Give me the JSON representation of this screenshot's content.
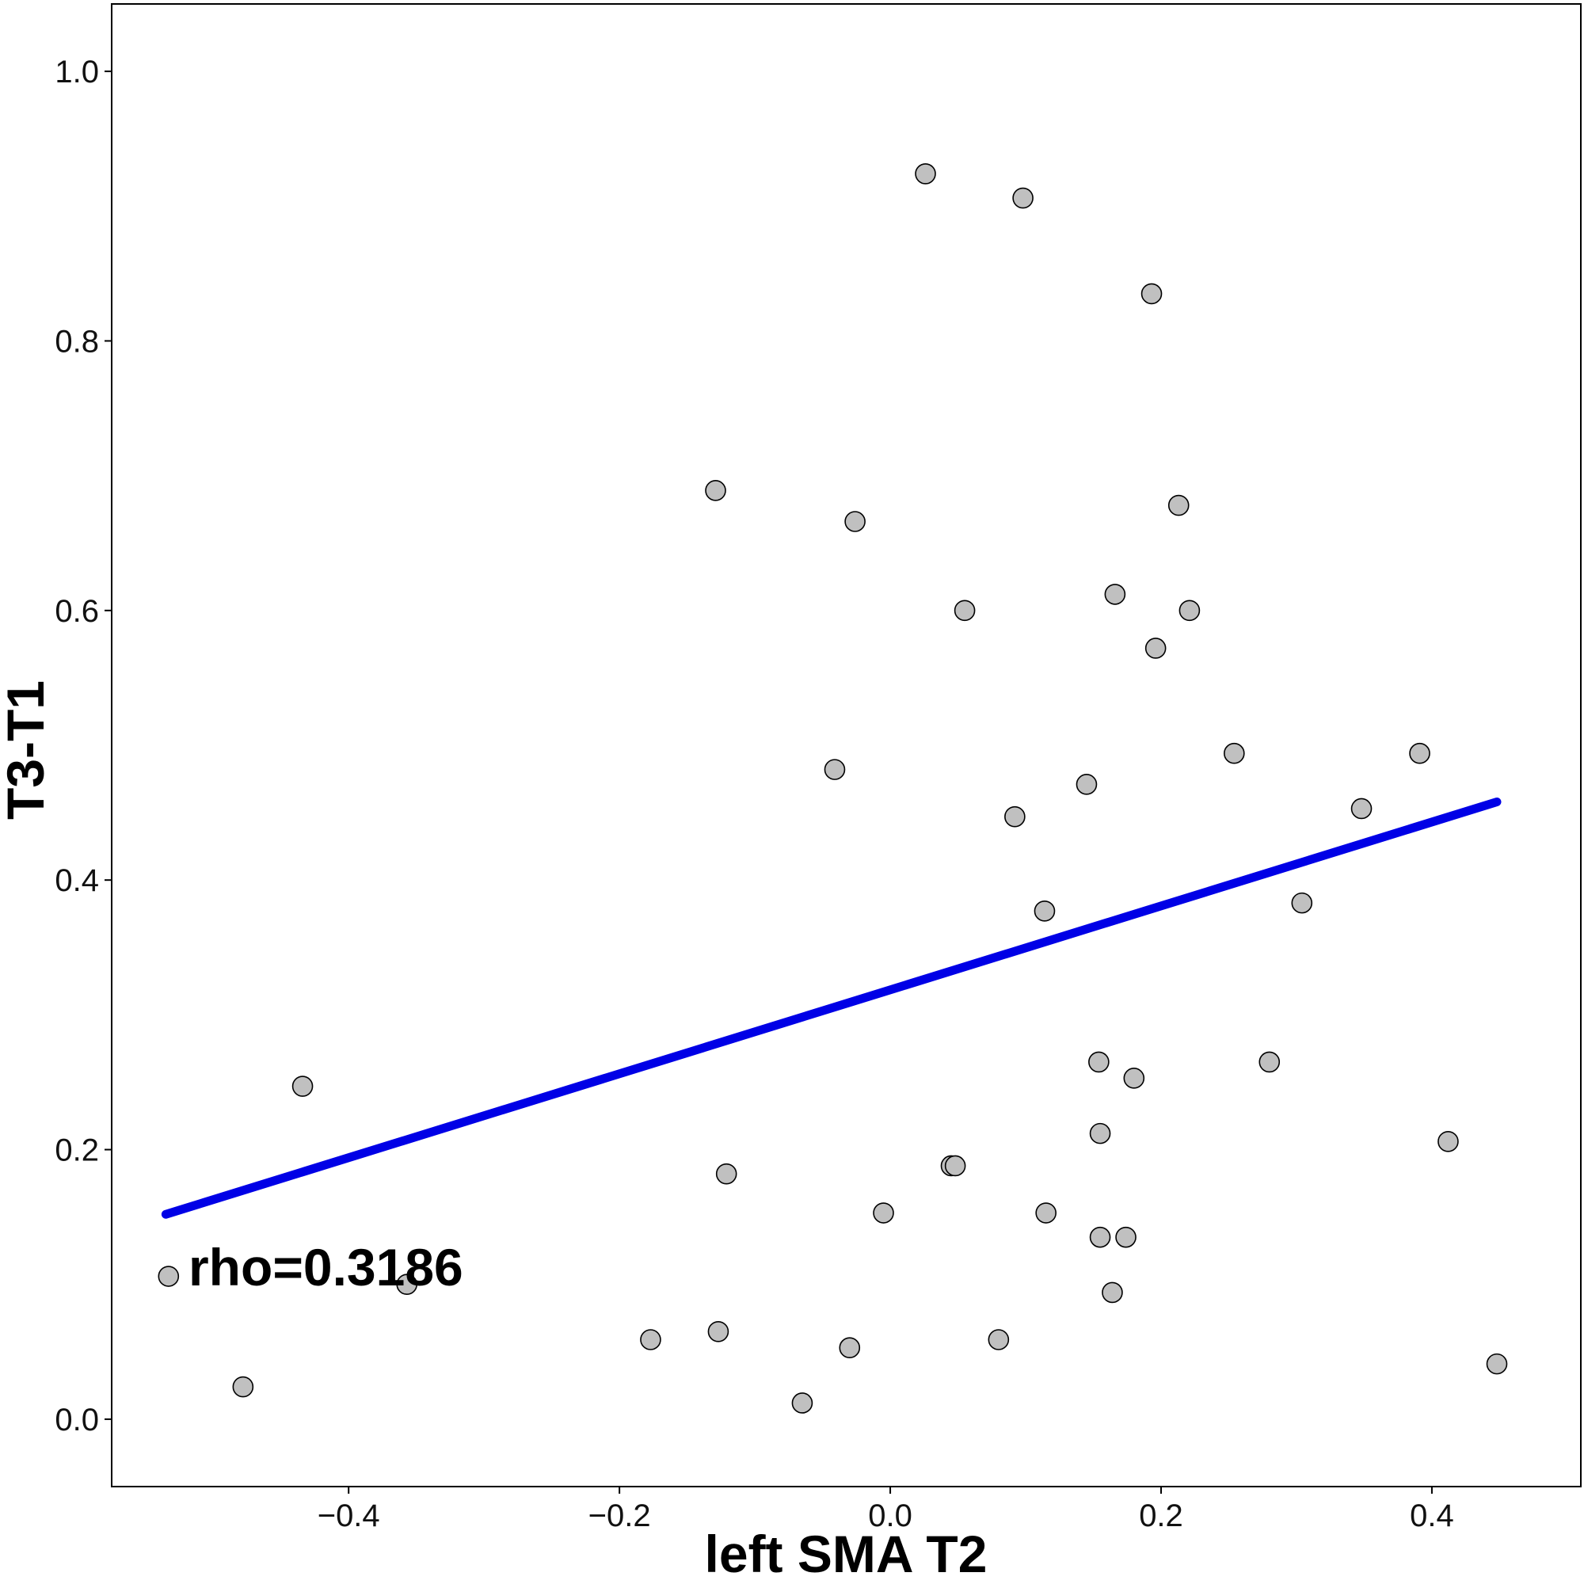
{
  "chart_data": {
    "type": "scatter",
    "xlabel": "left SMA T2",
    "ylabel": "T3-T1",
    "annotation": "rho=0.3186",
    "xlim": [
      -0.575,
      0.51
    ],
    "ylim": [
      -0.05,
      1.05
    ],
    "x_ticks": [
      -0.4,
      -0.2,
      0.0,
      0.2,
      0.4
    ],
    "x_tick_labels": [
      "−0.4",
      "−0.2",
      "0.0",
      "0.2",
      "0.4"
    ],
    "y_ticks": [
      0.0,
      0.2,
      0.4,
      0.6,
      0.8,
      1.0
    ],
    "y_tick_labels": [
      "0.0",
      "0.2",
      "0.4",
      "0.6",
      "0.8",
      "1.0"
    ],
    "grid": false,
    "points": [
      {
        "x": 0.026,
        "y": 0.924
      },
      {
        "x": 0.098,
        "y": 0.906
      },
      {
        "x": 0.193,
        "y": 0.835
      },
      {
        "x": -0.129,
        "y": 0.689
      },
      {
        "x": 0.213,
        "y": 0.678
      },
      {
        "x": -0.026,
        "y": 0.666
      },
      {
        "x": 0.166,
        "y": 0.612
      },
      {
        "x": 0.055,
        "y": 0.6
      },
      {
        "x": 0.221,
        "y": 0.6
      },
      {
        "x": 0.196,
        "y": 0.572
      },
      {
        "x": 0.254,
        "y": 0.494
      },
      {
        "x": 0.391,
        "y": 0.494
      },
      {
        "x": -0.041,
        "y": 0.482
      },
      {
        "x": 0.145,
        "y": 0.471
      },
      {
        "x": 0.348,
        "y": 0.453
      },
      {
        "x": 0.092,
        "y": 0.447
      },
      {
        "x": 0.304,
        "y": 0.383
      },
      {
        "x": 0.114,
        "y": 0.377
      },
      {
        "x": 0.154,
        "y": 0.265
      },
      {
        "x": 0.28,
        "y": 0.265
      },
      {
        "x": 0.18,
        "y": 0.253
      },
      {
        "x": -0.434,
        "y": 0.247
      },
      {
        "x": 0.155,
        "y": 0.212
      },
      {
        "x": 0.412,
        "y": 0.206
      },
      {
        "x": 0.045,
        "y": 0.188
      },
      {
        "x": 0.048,
        "y": 0.188
      },
      {
        "x": -0.121,
        "y": 0.182
      },
      {
        "x": -0.005,
        "y": 0.153
      },
      {
        "x": 0.115,
        "y": 0.153
      },
      {
        "x": 0.155,
        "y": 0.135
      },
      {
        "x": 0.174,
        "y": 0.135
      },
      {
        "x": -0.533,
        "y": 0.106
      },
      {
        "x": -0.357,
        "y": 0.1
      },
      {
        "x": 0.164,
        "y": 0.094
      },
      {
        "x": -0.127,
        "y": 0.065
      },
      {
        "x": -0.177,
        "y": 0.059
      },
      {
        "x": 0.08,
        "y": 0.059
      },
      {
        "x": -0.03,
        "y": 0.053
      },
      {
        "x": 0.448,
        "y": 0.041
      },
      {
        "x": -0.478,
        "y": 0.024
      },
      {
        "x": -0.065,
        "y": 0.012
      }
    ],
    "fit_line": {
      "x": [
        -0.535,
        0.448
      ],
      "y": [
        0.152,
        0.458
      ],
      "color": "#0000e6"
    },
    "marker_fill": "#c0c0c0",
    "marker_stroke": "#000000"
  }
}
